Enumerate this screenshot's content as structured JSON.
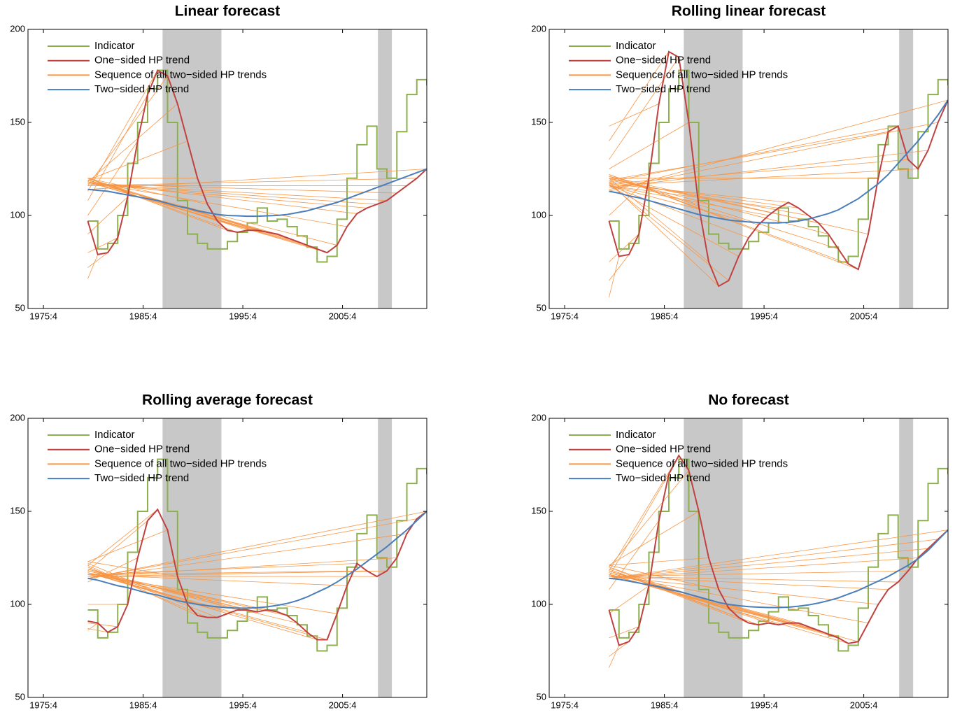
{
  "chart_data": [
    {
      "type": "line",
      "title": "Linear forecast",
      "x": [
        1980.2,
        1981.2,
        1982.2,
        1983.2,
        1984.2,
        1985.2,
        1986.2,
        1987.2,
        1988.2,
        1989.2,
        1990.2,
        1991.2,
        1992.2,
        1993.2,
        1994.2,
        1995.2,
        1996.2,
        1997.2,
        1998.2,
        1999.2,
        2000.2,
        2001.2,
        2002.2,
        2003.2,
        2004.2,
        2005.2,
        2006.2,
        2007.2,
        2008.2,
        2009.2,
        2010.2,
        2011.2,
        2012.2,
        2013.2,
        2014.2
      ],
      "series": [
        {
          "name": "Indicator",
          "color": "#8db04e",
          "style": "step",
          "values": [
            97,
            82,
            85,
            100,
            128,
            150,
            168,
            178,
            150,
            108,
            90,
            85,
            82,
            82,
            86,
            91,
            96,
            104,
            97,
            98,
            94,
            89,
            83,
            75,
            78,
            98,
            120,
            138,
            148,
            125,
            120,
            145,
            165,
            173,
            170
          ]
        },
        {
          "name": "One−sided HP trend",
          "color": "#c0413f",
          "style": "line",
          "values": [
            97,
            79,
            80,
            88,
            110,
            140,
            165,
            178,
            175,
            160,
            140,
            120,
            106,
            97,
            92,
            91,
            92,
            92,
            91,
            90,
            88,
            86,
            84,
            82,
            80,
            84,
            94,
            101,
            104,
            106,
            108,
            112,
            116,
            120,
            125
          ]
        },
        {
          "name": "Sequence of all two−sided HP trends",
          "color": "#f79646",
          "style": "fan",
          "values": [
            97,
            66,
            72,
            80,
            90,
            100,
            108,
            113,
            116,
            118,
            119,
            120,
            120,
            120,
            120,
            120,
            120,
            120,
            119,
            119,
            119,
            119,
            118,
            118,
            118,
            118,
            118,
            118,
            117,
            117,
            117,
            117,
            116,
            116,
            114
          ]
        },
        {
          "name": "Two−sided HP trend",
          "color": "#4a7ebb",
          "style": "line",
          "values": [
            114,
            113.5,
            113,
            112,
            111,
            110,
            109,
            108,
            106.5,
            105,
            104,
            102.5,
            101.5,
            100.5,
            100,
            99.8,
            99.6,
            99.6,
            99.8,
            100,
            100.5,
            101.5,
            102.5,
            104,
            105.5,
            107,
            109,
            111,
            113,
            115,
            117,
            119,
            121,
            123,
            125
          ]
        }
      ],
      "shaded": [
        [
          1987.7,
          1993.6
        ],
        [
          2009.3,
          2010.7
        ]
      ],
      "xlim": [
        1974.2,
        2014.2
      ],
      "xticks": [
        {
          "value": 1975.75,
          "label": "1975:4"
        },
        {
          "value": 1985.75,
          "label": "1985:4"
        },
        {
          "value": 1995.75,
          "label": "1995:4"
        },
        {
          "value": 2005.75,
          "label": "2005:4"
        }
      ],
      "ylim": [
        50,
        200
      ],
      "yticks": [
        50,
        100,
        150,
        200
      ],
      "legend": "upper-left"
    },
    {
      "type": "line",
      "title": "Rolling linear forecast",
      "x": [
        1980.2,
        1981.2,
        1982.2,
        1983.2,
        1984.2,
        1985.2,
        1986.2,
        1987.2,
        1988.2,
        1989.2,
        1990.2,
        1991.2,
        1992.2,
        1993.2,
        1994.2,
        1995.2,
        1996.2,
        1997.2,
        1998.2,
        1999.2,
        2000.2,
        2001.2,
        2002.2,
        2003.2,
        2004.2,
        2005.2,
        2006.2,
        2007.2,
        2008.2,
        2009.2,
        2010.2,
        2011.2,
        2012.2,
        2013.2,
        2014.2
      ],
      "series": [
        {
          "name": "Indicator",
          "color": "#8db04e",
          "style": "step",
          "values": [
            97,
            82,
            85,
            100,
            128,
            150,
            168,
            178,
            150,
            108,
            90,
            85,
            82,
            82,
            86,
            91,
            96,
            104,
            97,
            98,
            94,
            89,
            83,
            75,
            78,
            98,
            120,
            138,
            148,
            125,
            120,
            145,
            165,
            173,
            170
          ]
        },
        {
          "name": "One−sided HP trend",
          "color": "#c0413f",
          "style": "line",
          "values": [
            97,
            78,
            79,
            90,
            120,
            160,
            188,
            185,
            150,
            105,
            75,
            62,
            65,
            78,
            88,
            95,
            100,
            104,
            107,
            104,
            100,
            96,
            90,
            82,
            74,
            71,
            90,
            120,
            145,
            148,
            130,
            125,
            135,
            150,
            162
          ]
        },
        {
          "name": "Sequence of all two−sided HP trends",
          "color": "#f79646",
          "style": "fan",
          "values": [
            97,
            56,
            65,
            75,
            100,
            148,
            140,
            130,
            125,
            122,
            120,
            118,
            117,
            116,
            116,
            116,
            116,
            116,
            117,
            118,
            119,
            120,
            120,
            121,
            122,
            122,
            121,
            120,
            119,
            118,
            117,
            116,
            115,
            114,
            113
          ]
        },
        {
          "name": "Two−sided HP trend",
          "color": "#4a7ebb",
          "style": "line",
          "values": [
            113,
            112,
            110.5,
            109.5,
            108,
            106.5,
            105,
            103.5,
            102,
            100.5,
            99.5,
            98.5,
            97.5,
            97,
            96.5,
            96.2,
            96,
            96,
            96.3,
            97,
            98,
            99.5,
            101,
            103,
            106,
            109,
            113,
            117,
            122,
            128,
            134,
            140,
            147,
            154,
            162
          ]
        }
      ],
      "shaded": [
        [
          1987.7,
          1993.6
        ],
        [
          2009.3,
          2010.7
        ]
      ],
      "xlim": [
        1974.2,
        2014.2
      ],
      "xticks": [
        {
          "value": 1975.75,
          "label": "1975:4"
        },
        {
          "value": 1985.75,
          "label": "1985:4"
        },
        {
          "value": 1995.75,
          "label": "1995:4"
        },
        {
          "value": 2005.75,
          "label": "2005:4"
        }
      ],
      "ylim": [
        50,
        200
      ],
      "yticks": [
        50,
        100,
        150,
        200
      ],
      "legend": "upper-left"
    },
    {
      "type": "line",
      "title": "Rolling average forecast",
      "x": [
        1980.2,
        1981.2,
        1982.2,
        1983.2,
        1984.2,
        1985.2,
        1986.2,
        1987.2,
        1988.2,
        1989.2,
        1990.2,
        1991.2,
        1992.2,
        1993.2,
        1994.2,
        1995.2,
        1996.2,
        1997.2,
        1998.2,
        1999.2,
        2000.2,
        2001.2,
        2002.2,
        2003.2,
        2004.2,
        2005.2,
        2006.2,
        2007.2,
        2008.2,
        2009.2,
        2010.2,
        2011.2,
        2012.2,
        2013.2,
        2014.2
      ],
      "series": [
        {
          "name": "Indicator",
          "color": "#8db04e",
          "style": "step",
          "values": [
            97,
            82,
            85,
            100,
            128,
            150,
            168,
            178,
            150,
            108,
            90,
            85,
            82,
            82,
            86,
            91,
            96,
            104,
            97,
            98,
            94,
            89,
            83,
            75,
            78,
            98,
            120,
            138,
            148,
            125,
            120,
            145,
            165,
            173,
            170
          ]
        },
        {
          "name": "One−sided HP trend",
          "color": "#c0413f",
          "style": "line",
          "values": [
            91,
            90,
            85,
            88,
            100,
            125,
            145,
            151,
            140,
            115,
            100,
            94,
            93,
            93,
            95,
            97,
            97,
            96,
            97,
            96,
            94,
            90,
            85,
            81,
            81,
            95,
            110,
            122,
            118,
            115,
            118,
            125,
            138,
            146,
            150
          ]
        },
        {
          "name": "Sequence of all two−sided HP trends",
          "color": "#f79646",
          "style": "fan",
          "values": [
            91,
            86,
            87,
            90,
            100,
            112,
            118,
            121,
            123,
            123,
            122,
            121,
            120,
            120,
            119,
            119,
            118,
            118,
            118,
            117,
            117,
            117,
            117,
            117,
            117,
            116,
            116,
            116,
            116,
            115,
            115,
            115,
            114,
            114,
            114
          ]
        },
        {
          "name": "Two−sided HP trend",
          "color": "#4a7ebb",
          "style": "line",
          "values": [
            114,
            113,
            111.5,
            110,
            109,
            107.5,
            106,
            105,
            103.5,
            102,
            101,
            100,
            99.3,
            98.7,
            98.2,
            98,
            98,
            98.2,
            98.7,
            99.5,
            100.5,
            102,
            104,
            106.5,
            109,
            112,
            115.5,
            119,
            123,
            127,
            131,
            135.5,
            140,
            145,
            150
          ]
        }
      ],
      "shaded": [
        [
          1987.7,
          1993.6
        ],
        [
          2009.3,
          2010.7
        ]
      ],
      "xlim": [
        1974.2,
        2014.2
      ],
      "xticks": [
        {
          "value": 1975.75,
          "label": "1975:4"
        },
        {
          "value": 1985.75,
          "label": "1985:4"
        },
        {
          "value": 1995.75,
          "label": "1995:4"
        },
        {
          "value": 2005.75,
          "label": "2005:4"
        }
      ],
      "ylim": [
        50,
        200
      ],
      "yticks": [
        50,
        100,
        150,
        200
      ],
      "legend": "upper-left"
    },
    {
      "type": "line",
      "title": "No forecast",
      "x": [
        1980.2,
        1981.2,
        1982.2,
        1983.2,
        1984.2,
        1985.2,
        1986.2,
        1987.2,
        1988.2,
        1989.2,
        1990.2,
        1991.2,
        1992.2,
        1993.2,
        1994.2,
        1995.2,
        1996.2,
        1997.2,
        1998.2,
        1999.2,
        2000.2,
        2001.2,
        2002.2,
        2003.2,
        2004.2,
        2005.2,
        2006.2,
        2007.2,
        2008.2,
        2009.2,
        2010.2,
        2011.2,
        2012.2,
        2013.2,
        2014.2
      ],
      "series": [
        {
          "name": "Indicator",
          "color": "#8db04e",
          "style": "step",
          "values": [
            97,
            82,
            85,
            100,
            128,
            150,
            168,
            178,
            150,
            108,
            90,
            85,
            82,
            82,
            86,
            91,
            96,
            104,
            97,
            98,
            94,
            89,
            83,
            75,
            78,
            98,
            120,
            138,
            148,
            125,
            120,
            145,
            165,
            173,
            170
          ]
        },
        {
          "name": "One−sided HP trend",
          "color": "#c0413f",
          "style": "line",
          "values": [
            97,
            78,
            80,
            88,
            110,
            145,
            170,
            180,
            172,
            150,
            125,
            108,
            98,
            93,
            90,
            89,
            90,
            89,
            90,
            90,
            88,
            86,
            84,
            82,
            79,
            80,
            90,
            100,
            108,
            112,
            118,
            125,
            130,
            135,
            140
          ]
        },
        {
          "name": "Sequence of all two−sided HP trends",
          "color": "#f79646",
          "style": "fan",
          "values": [
            97,
            66,
            72,
            82,
            95,
            108,
            115,
            118,
            120,
            121,
            121,
            121,
            120,
            120,
            119,
            119,
            118,
            118,
            118,
            117,
            117,
            117,
            116,
            116,
            116,
            116,
            116,
            115,
            115,
            115,
            115,
            114,
            114,
            114,
            114
          ]
        },
        {
          "name": "Two−sided HP trend",
          "color": "#4a7ebb",
          "style": "line",
          "values": [
            114,
            113.5,
            112.5,
            111.5,
            110.5,
            109.5,
            108,
            107,
            105.5,
            104,
            102.5,
            101,
            100,
            99.3,
            98.8,
            98.5,
            98.3,
            98.3,
            98.5,
            99,
            99.7,
            100.7,
            102,
            103.5,
            105.5,
            107.5,
            110,
            112.5,
            115,
            118,
            121,
            124.5,
            129,
            134.5,
            140
          ]
        }
      ],
      "shaded": [
        [
          1987.7,
          1993.6
        ],
        [
          2009.3,
          2010.7
        ]
      ],
      "xlim": [
        1974.2,
        2014.2
      ],
      "xticks": [
        {
          "value": 1975.75,
          "label": "1975:4"
        },
        {
          "value": 1985.75,
          "label": "1985:4"
        },
        {
          "value": 1995.75,
          "label": "1995:4"
        },
        {
          "value": 2005.75,
          "label": "2005:4"
        }
      ],
      "ylim": [
        50,
        200
      ],
      "yticks": [
        50,
        100,
        150,
        200
      ],
      "legend": "upper-left"
    }
  ]
}
